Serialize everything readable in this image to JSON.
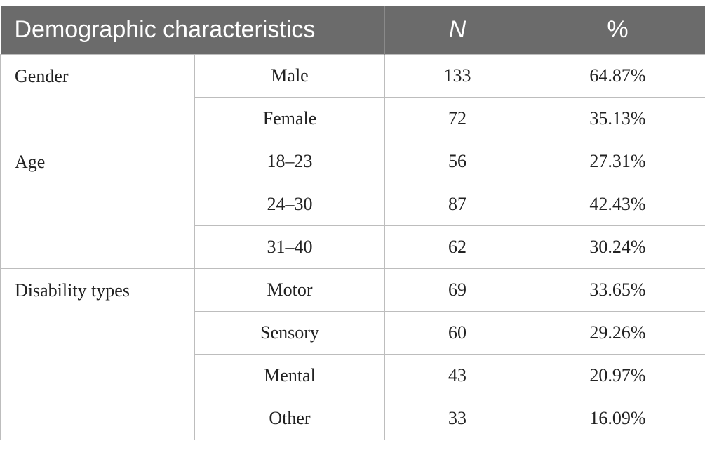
{
  "table": {
    "headers": [
      "Demographic characteristics",
      "N",
      "%"
    ],
    "groups": [
      {
        "label": "Gender",
        "rows": [
          {
            "category": "Male",
            "n": "133",
            "pct": "64.87%"
          },
          {
            "category": "Female",
            "n": "72",
            "pct": "35.13%"
          }
        ]
      },
      {
        "label": "Age",
        "rows": [
          {
            "category": "18–23",
            "n": "56",
            "pct": "27.31%"
          },
          {
            "category": "24–30",
            "n": "87",
            "pct": "42.43%"
          },
          {
            "category": "31–40",
            "n": "62",
            "pct": "30.24%"
          }
        ]
      },
      {
        "label": "Disability types",
        "rows": [
          {
            "category": "Motor",
            "n": "69",
            "pct": "33.65%"
          },
          {
            "category": "Sensory",
            "n": "60",
            "pct": "29.26%"
          },
          {
            "category": "Mental",
            "n": "43",
            "pct": "20.97%"
          },
          {
            "category": "Other",
            "n": "33",
            "pct": "16.09%"
          }
        ]
      }
    ]
  }
}
